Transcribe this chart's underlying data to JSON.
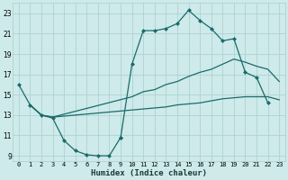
{
  "xlabel": "Humidex (Indice chaleur)",
  "bg_color": "#ceeaea",
  "grid_color": "#aacece",
  "line_color": "#1a6b6b",
  "xlim": [
    -0.5,
    23.5
  ],
  "ylim": [
    8.5,
    24.0
  ],
  "xticks": [
    0,
    1,
    2,
    3,
    4,
    5,
    6,
    7,
    8,
    9,
    10,
    11,
    12,
    13,
    14,
    15,
    16,
    17,
    18,
    19,
    20,
    21,
    22,
    23
  ],
  "yticks": [
    9,
    11,
    13,
    15,
    17,
    19,
    21,
    23
  ],
  "curve1_x": [
    0,
    1,
    2,
    3,
    4,
    5,
    6,
    7,
    8,
    9
  ],
  "curve1_y": [
    16.0,
    14.0,
    13.0,
    12.7,
    10.5,
    9.5,
    9.1,
    9.0,
    9.0,
    10.8
  ],
  "curve2_x": [
    9,
    10,
    11,
    12,
    13,
    14,
    15,
    16,
    17,
    18,
    19,
    20,
    21,
    22
  ],
  "curve2_y": [
    10.8,
    18.0,
    21.3,
    21.3,
    21.5,
    22.0,
    23.3,
    22.3,
    21.5,
    20.3,
    20.5,
    17.2,
    16.7,
    14.2
  ],
  "curve3_x": [
    1,
    2,
    3,
    10,
    11,
    12,
    13,
    14,
    15,
    16,
    17,
    18,
    19,
    20,
    21,
    22,
    23
  ],
  "curve3_y": [
    14.0,
    13.0,
    12.8,
    13.5,
    13.6,
    13.7,
    13.8,
    14.0,
    14.1,
    14.2,
    14.4,
    14.6,
    14.7,
    14.8,
    14.8,
    14.8,
    14.5
  ],
  "curve4_x": [
    1,
    2,
    3,
    10,
    11,
    12,
    13,
    14,
    15,
    16,
    17,
    18,
    19,
    20,
    21,
    22,
    23
  ],
  "curve4_y": [
    14.0,
    13.0,
    12.8,
    14.8,
    15.3,
    15.5,
    16.0,
    16.3,
    16.8,
    17.2,
    17.5,
    18.0,
    18.5,
    18.2,
    17.8,
    17.5,
    16.3
  ]
}
